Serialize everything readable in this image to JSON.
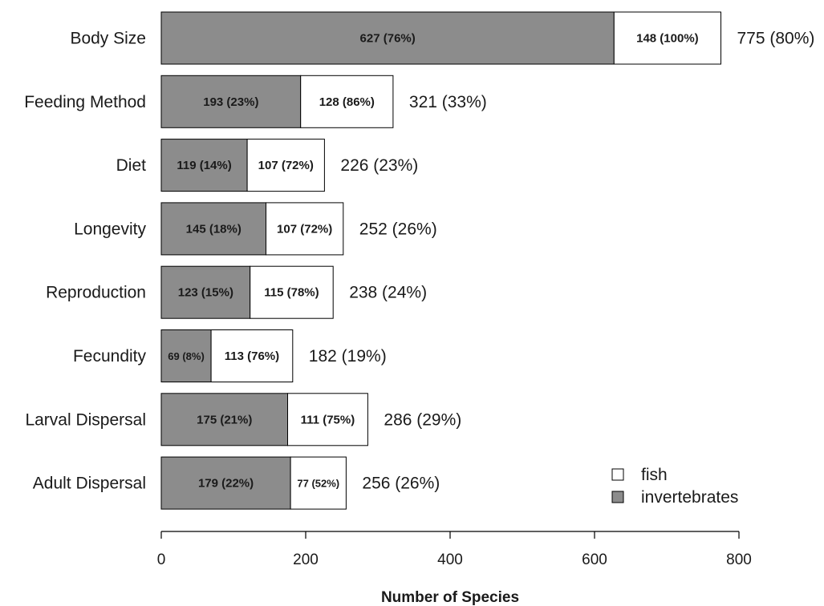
{
  "chart_data": {
    "type": "bar",
    "orientation": "horizontal",
    "stacked": true,
    "title": "",
    "xlabel": "Number of Species",
    "ylabel": "",
    "xlim": [
      0,
      800
    ],
    "xticks": [
      "0",
      "200",
      "400",
      "600",
      "800"
    ],
    "grid": false,
    "legend_position": "bottom-right",
    "categories": [
      "Body Size",
      "Feeding Method",
      "Diet",
      "Longevity",
      "Reproduction",
      "Fecundity",
      "Larval Dispersal",
      "Adult Dispersal"
    ],
    "series": [
      {
        "name": "invertebrates",
        "color": "#8c8c8c",
        "values": [
          627,
          193,
          119,
          145,
          123,
          69,
          175,
          179
        ],
        "labels": [
          "627 (76%)",
          "193 (23%)",
          "119 (14%)",
          "145 (18%)",
          "123 (15%)",
          "69 (8%)",
          "175 (21%)",
          "179 (22%)"
        ]
      },
      {
        "name": "fish",
        "color": "#ffffff",
        "values": [
          148,
          128,
          107,
          107,
          115,
          113,
          111,
          77
        ],
        "labels": [
          "148 (100%)",
          "128 (86%)",
          "107 (72%)",
          "107 (72%)",
          "115 (78%)",
          "113 (76%)",
          "111 (75%)",
          "77 (52%)"
        ]
      }
    ],
    "totals": [
      775,
      321,
      226,
      252,
      238,
      182,
      286,
      256
    ],
    "total_labels": [
      "775 (80%)",
      "321 (33%)",
      "226 (23%)",
      "252 (26%)",
      "238 (24%)",
      "182 (19%)",
      "286 (29%)",
      "256 (26%)"
    ],
    "legend": [
      {
        "name": "fish",
        "color": "#ffffff"
      },
      {
        "name": "invertebrates",
        "color": "#8c8c8c"
      }
    ]
  }
}
